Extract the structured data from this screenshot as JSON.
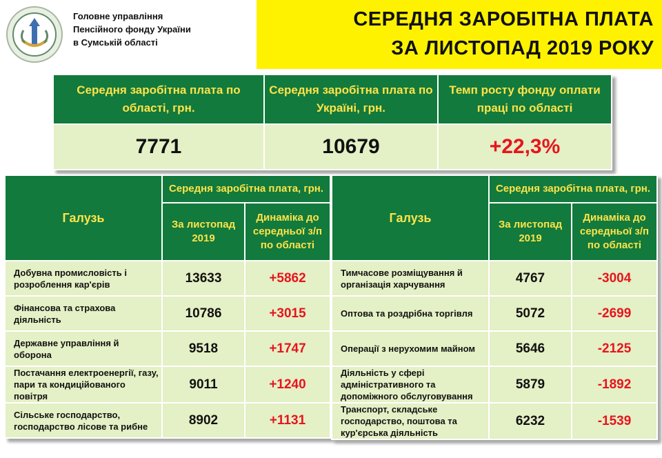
{
  "header": {
    "org_lines": [
      "Головне управління",
      "Пенсійного фонду України",
      "в Сумській області"
    ],
    "title_lines": [
      "СЕРЕДНЯ ЗАРОБІТНА ПЛАТА",
      "ЗА ЛИСТОПАД 2019 РОКУ"
    ]
  },
  "summary": {
    "headers": [
      "Середня заробітна плата по області, грн.",
      "Середня заробітна плата по Україні, грн.",
      "Темп росту фонду оплати праці по області"
    ],
    "values": [
      "7771",
      "10679",
      "+22,3%"
    ]
  },
  "industry_headers": {
    "sector": "Галузь",
    "group": "Середня заробітна плата, грн.",
    "month": "За листопад 2019",
    "dynamics": "Динаміка до середньої з/п по області"
  },
  "left_table": {
    "rows": [
      {
        "name": "Добувна промисловість і розроблення кар'єрів",
        "value": "13633",
        "dynamics": "+5862"
      },
      {
        "name": "Фінансова та страхова діяльність",
        "value": "10786",
        "dynamics": "+3015"
      },
      {
        "name": "Державне управління й оборона",
        "value": "9518",
        "dynamics": "+1747"
      },
      {
        "name": "Постачання електроенергії, газу, пари та кондиційованого повітря",
        "value": "9011",
        "dynamics": "+1240"
      },
      {
        "name": "Сільське господарство, господарство лісове та рибне",
        "value": "8902",
        "dynamics": "+1131"
      }
    ]
  },
  "right_table": {
    "rows": [
      {
        "name": "Тимчасове розміщування й організація харчування",
        "value": "4767",
        "dynamics": "-3004"
      },
      {
        "name": "Оптова та роздрібна торгівля",
        "value": "5072",
        "dynamics": "-2699"
      },
      {
        "name": "Операції з нерухомим майном",
        "value": "5646",
        "dynamics": "-2125"
      },
      {
        "name": "Діяльність у сфері адміністративного та допоміжного обслуговування",
        "value": "5879",
        "dynamics": "-1892"
      },
      {
        "name": "Транспорт, складське господарство, поштова та кур'єрська діяльність",
        "value": "6232",
        "dynamics": "-1539"
      }
    ]
  },
  "colors": {
    "header_green": "#127a3c",
    "header_text_yellow": "#ffe34a",
    "cell_bg": "#e4f0c5",
    "title_bg": "#fff200",
    "dynamics_red": "#e8141e"
  },
  "icons": [
    "pension-fund-emblem-icon"
  ]
}
